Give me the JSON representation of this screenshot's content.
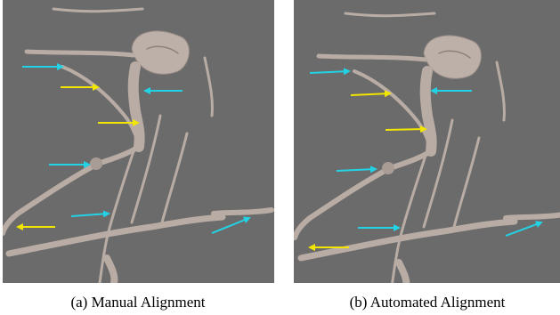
{
  "figure": {
    "panels": [
      {
        "caption": "(a) Manual Alignment"
      },
      {
        "caption": "(b) Automated Alignment"
      }
    ]
  }
}
